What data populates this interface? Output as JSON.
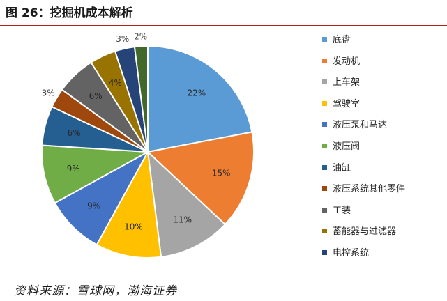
{
  "figure": {
    "title": "图 26：挖掘机成本解析",
    "source": "资料来源：雪球网，渤海证券"
  },
  "chart_data": {
    "type": "pie",
    "title": "",
    "start_angle": "12 o'clock",
    "direction": "clockwise",
    "legend_position": "right",
    "slices": [
      {
        "label": "底盘",
        "value": 22,
        "display": "22%",
        "color": "#5b9bd5"
      },
      {
        "label": "发动机",
        "value": 15,
        "display": "15%",
        "color": "#ed7d31"
      },
      {
        "label": "上车架",
        "value": 11,
        "display": "11%",
        "color": "#a5a5a5"
      },
      {
        "label": "驾驶室",
        "value": 10,
        "display": "10%",
        "color": "#ffc000"
      },
      {
        "label": "液压泵和马达",
        "value": 9,
        "display": "9%",
        "color": "#4472c4"
      },
      {
        "label": "液压阀",
        "value": 9,
        "display": "9%",
        "color": "#70ad47"
      },
      {
        "label": "油缸",
        "value": 6,
        "display": "6%",
        "color": "#255e91"
      },
      {
        "label": "液压系统其他零件",
        "value": 3,
        "display": "3%",
        "color": "#9e480e"
      },
      {
        "label": "工装",
        "value": 6,
        "display": "6%",
        "color": "#636363"
      },
      {
        "label": "蓄能器与过滤器",
        "value": 4,
        "display": "4%",
        "color": "#997300"
      },
      {
        "label": "电控系统",
        "value": 3,
        "display": "3%",
        "color": "#264478"
      },
      {
        "label": "",
        "value": 2,
        "display": "2%",
        "color": "#43682b"
      }
    ]
  }
}
